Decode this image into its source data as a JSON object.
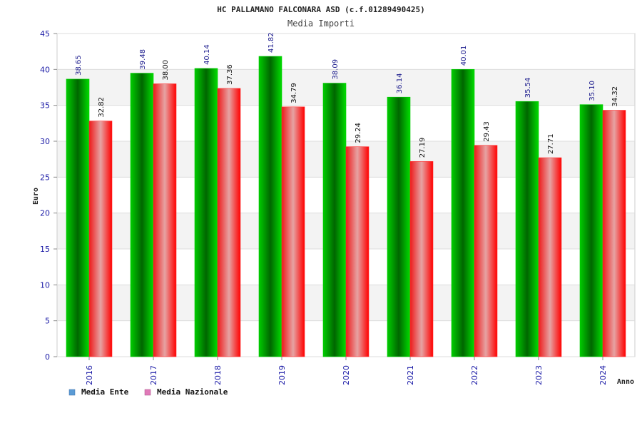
{
  "chart_data": {
    "type": "bar",
    "title": "HC PALLAMANO FALCONARA ASD (c.f.01289490425)",
    "subtitle": "Media Importi",
    "xlabel": "Anno",
    "ylabel": "Euro",
    "ylim": [
      0,
      45
    ],
    "yticks": [
      0,
      5,
      10,
      15,
      20,
      25,
      30,
      35,
      40,
      45
    ],
    "grid": true,
    "legend_position": "bottom-left",
    "categories": [
      "2016",
      "2017",
      "2018",
      "2019",
      "2020",
      "2021",
      "2022",
      "2023",
      "2024"
    ],
    "series": [
      {
        "name": "Media Ente",
        "color": "#00a000",
        "legend_color": "#5b9bd5",
        "values": [
          38.65,
          39.48,
          40.14,
          41.82,
          38.09,
          36.14,
          40.01,
          35.54,
          35.1
        ],
        "labels": [
          "38.65",
          "39.48",
          "40.14",
          "41.82",
          "38.09",
          "36.14",
          "40.01",
          "35.54",
          "35.10"
        ],
        "label_color": "#1a1a8c"
      },
      {
        "name": "Media Nazionale",
        "color": "#ff0000",
        "legend_color": "#e07ab8",
        "values": [
          32.82,
          38.0,
          37.36,
          34.79,
          29.24,
          27.19,
          29.43,
          27.71,
          34.32
        ],
        "labels": [
          "32.82",
          "38.00",
          "37.36",
          "34.79",
          "29.24",
          "27.19",
          "29.43",
          "27.71",
          "34.32"
        ],
        "label_color": "#111111"
      }
    ]
  }
}
